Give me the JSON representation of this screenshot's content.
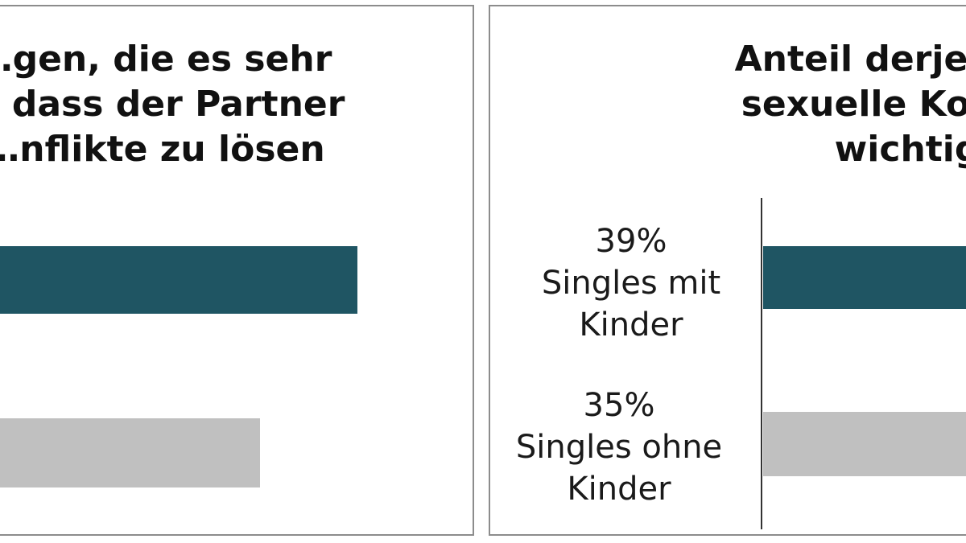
{
  "chart_data": [
    {
      "type": "bar",
      "orientation": "horizontal",
      "title_lines": [
        "…gen, die es sehr",
        "… dass der Partner",
        "…nflikte zu lösen"
      ],
      "categories": [],
      "values": [],
      "colors": [
        "#1f5563",
        "#c0c0c0"
      ]
    },
    {
      "type": "bar",
      "orientation": "horizontal",
      "title_lines": [
        "Anteil derjenigen…",
        "sexuelle Kompat…",
        "wichtig…"
      ],
      "categories": [
        "Singles mit Kinder",
        "Singles ohne Kinder"
      ],
      "values": [
        39,
        35
      ],
      "value_labels": [
        "39%",
        "35%"
      ],
      "label_lines": [
        [
          "39%",
          "Singles mit",
          "Kinder"
        ],
        [
          "35%",
          "Singles ohne",
          "Kinder"
        ]
      ],
      "colors": [
        "#1f5563",
        "#c0c0c0"
      ]
    }
  ]
}
